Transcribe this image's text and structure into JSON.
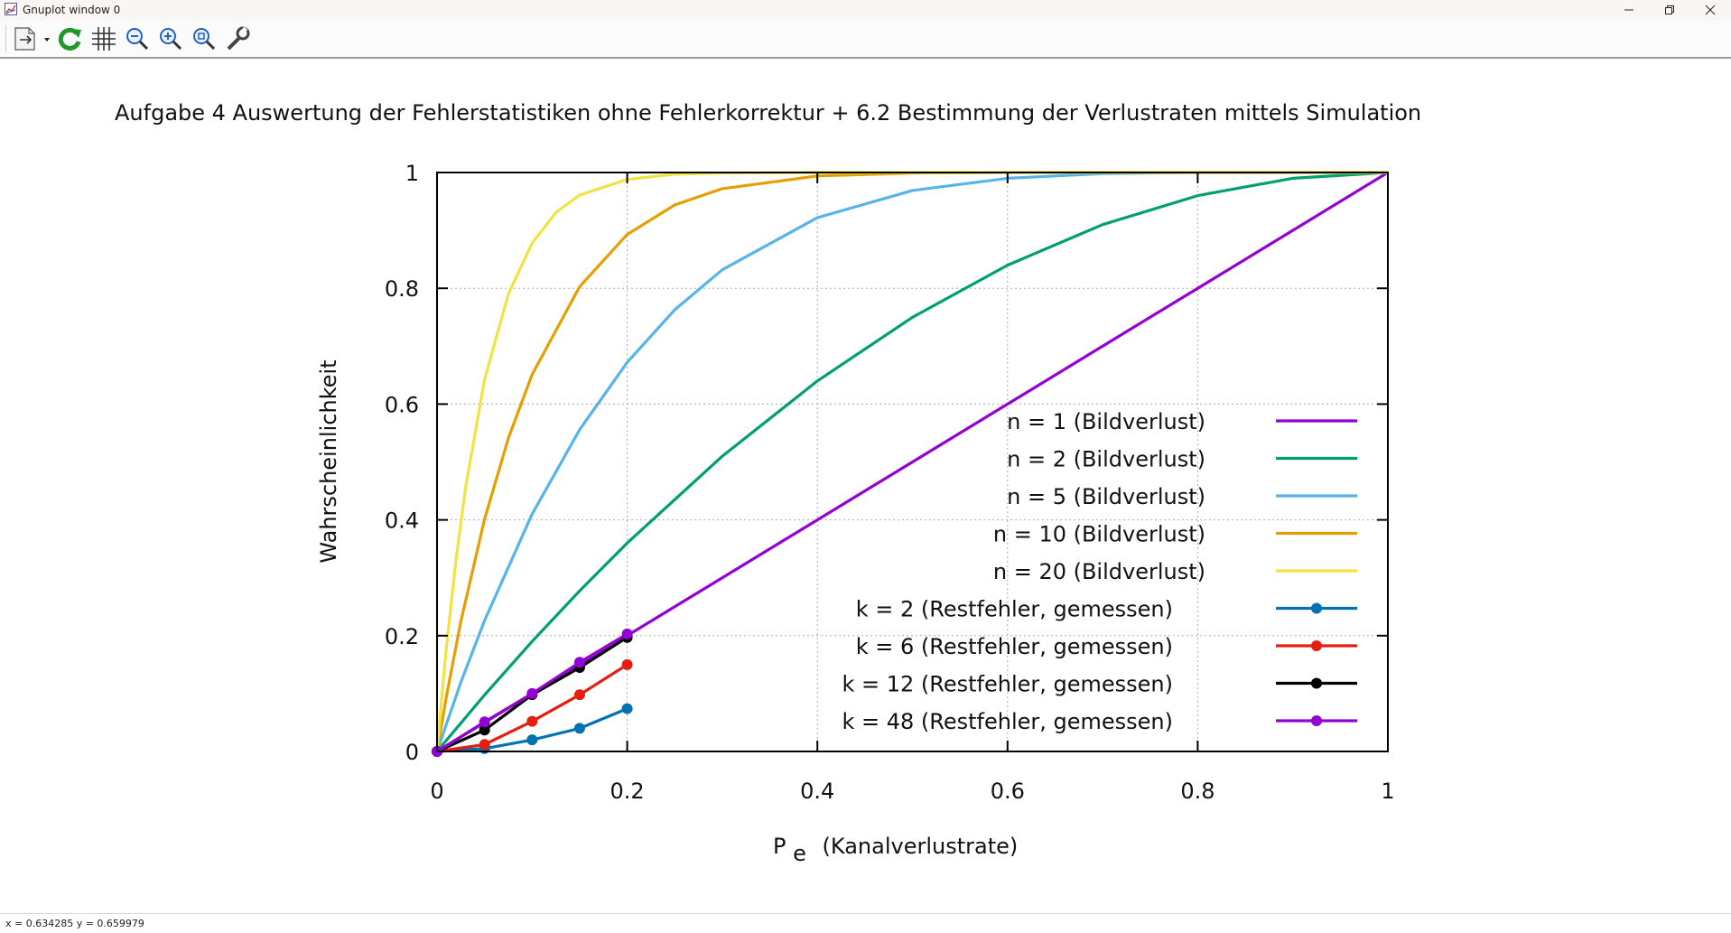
{
  "window": {
    "title": "Gnuplot window 0"
  },
  "toolbar": {
    "buttons": [
      {
        "icon": "copy-export-icon",
        "label": "Copy / export"
      },
      {
        "icon": "replot-icon",
        "label": "Replot"
      },
      {
        "icon": "grid-icon",
        "label": "Toggle grid"
      },
      {
        "icon": "zoom-previous-icon",
        "label": "Previous zoom"
      },
      {
        "icon": "zoom-next-icon",
        "label": "Next zoom"
      },
      {
        "icon": "autoscale-icon",
        "label": "Autoscale"
      },
      {
        "icon": "options-icon",
        "label": "Options"
      }
    ]
  },
  "status": {
    "coordinates": "x = 0.634285 y = 0.659979"
  },
  "chart_data": {
    "type": "line",
    "title": "Aufgabe 4  Auswertung der Fehlerstatistiken ohne Fehlerkorrektur + 6.2 Bestimmung der Verlustraten mittels Simulation",
    "xlabel_main": "P",
    "xlabel_sub": "e",
    "xlabel_rest": "(Kanalverlustrate)",
    "ylabel": "Wahrscheinlichkeit",
    "xlim": [
      0,
      1
    ],
    "ylim": [
      0,
      1
    ],
    "x_ticks": [
      "0",
      "0.2",
      "0.4",
      "0.6",
      "0.8",
      "1"
    ],
    "y_ticks": [
      "0",
      "0.2",
      "0.4",
      "0.6",
      "0.8",
      "1"
    ],
    "grid": true,
    "legend_position": "right-middle",
    "series": [
      {
        "name": "n = 1 (Bildverlust)",
        "color": "#9400d3",
        "style": "line",
        "x": [
          0,
          0.05,
          0.1,
          0.2,
          0.3,
          0.4,
          0.5,
          0.6,
          0.7,
          0.8,
          0.9,
          1.0
        ],
        "y": [
          0,
          0.05,
          0.1,
          0.2,
          0.3,
          0.4,
          0.5,
          0.6,
          0.7,
          0.8,
          0.9,
          1.0
        ]
      },
      {
        "name": "n = 2 (Bildverlust)",
        "color": "#009e73",
        "style": "line",
        "x": [
          0,
          0.05,
          0.1,
          0.15,
          0.2,
          0.3,
          0.4,
          0.5,
          0.6,
          0.7,
          0.8,
          0.9,
          1.0
        ],
        "y": [
          0,
          0.0975,
          0.19,
          0.2775,
          0.36,
          0.51,
          0.64,
          0.75,
          0.84,
          0.91,
          0.96,
          0.99,
          1.0
        ]
      },
      {
        "name": "n = 5 (Bildverlust)",
        "color": "#56b4e9",
        "style": "line",
        "x": [
          0,
          0.025,
          0.05,
          0.1,
          0.15,
          0.2,
          0.25,
          0.3,
          0.4,
          0.5,
          0.6,
          0.7,
          0.8,
          1.0
        ],
        "y": [
          0,
          0.119,
          0.226,
          0.41,
          0.556,
          0.672,
          0.763,
          0.832,
          0.922,
          0.969,
          0.99,
          0.998,
          1.0,
          1.0
        ]
      },
      {
        "name": "n = 10 (Bildverlust)",
        "color": "#e69f00",
        "style": "line",
        "x": [
          0,
          0.01,
          0.025,
          0.05,
          0.075,
          0.1,
          0.15,
          0.2,
          0.25,
          0.3,
          0.4,
          0.5,
          0.6,
          1.0
        ],
        "y": [
          0,
          0.096,
          0.224,
          0.401,
          0.541,
          0.651,
          0.803,
          0.893,
          0.944,
          0.972,
          0.994,
          0.999,
          1.0,
          1.0
        ]
      },
      {
        "name": "n = 20 (Bildverlust)",
        "color": "#f0e442",
        "style": "line",
        "x": [
          0,
          0.005,
          0.01,
          0.02,
          0.03,
          0.05,
          0.075,
          0.1,
          0.125,
          0.15,
          0.2,
          0.25,
          0.3,
          0.4,
          1.0
        ],
        "y": [
          0,
          0.095,
          0.182,
          0.332,
          0.456,
          0.642,
          0.79,
          0.878,
          0.931,
          0.961,
          0.988,
          0.997,
          0.999,
          1.0,
          1.0
        ]
      },
      {
        "name": "k = 2 (Restfehler, gemessen)",
        "color": "#0072b2",
        "style": "linespoints",
        "x": [
          0,
          0.05,
          0.1,
          0.15,
          0.2
        ],
        "y": [
          0,
          0.005,
          0.02,
          0.04,
          0.074
        ]
      },
      {
        "name": "k = 6 (Restfehler, gemessen)",
        "color": "#e51e10",
        "style": "linespoints",
        "x": [
          0,
          0.05,
          0.1,
          0.15,
          0.2
        ],
        "y": [
          0,
          0.012,
          0.052,
          0.098,
          0.15
        ]
      },
      {
        "name": "k = 12 (Restfehler, gemessen)",
        "color": "#000000",
        "style": "linespoints",
        "x": [
          0,
          0.05,
          0.1,
          0.15,
          0.2
        ],
        "y": [
          0,
          0.037,
          0.098,
          0.145,
          0.197
        ]
      },
      {
        "name": "k = 48 (Restfehler, gemessen)",
        "color": "#9400d3",
        "style": "linespoints",
        "x": [
          0,
          0.05,
          0.1,
          0.15,
          0.2
        ],
        "y": [
          0,
          0.051,
          0.1,
          0.154,
          0.203
        ]
      }
    ]
  }
}
